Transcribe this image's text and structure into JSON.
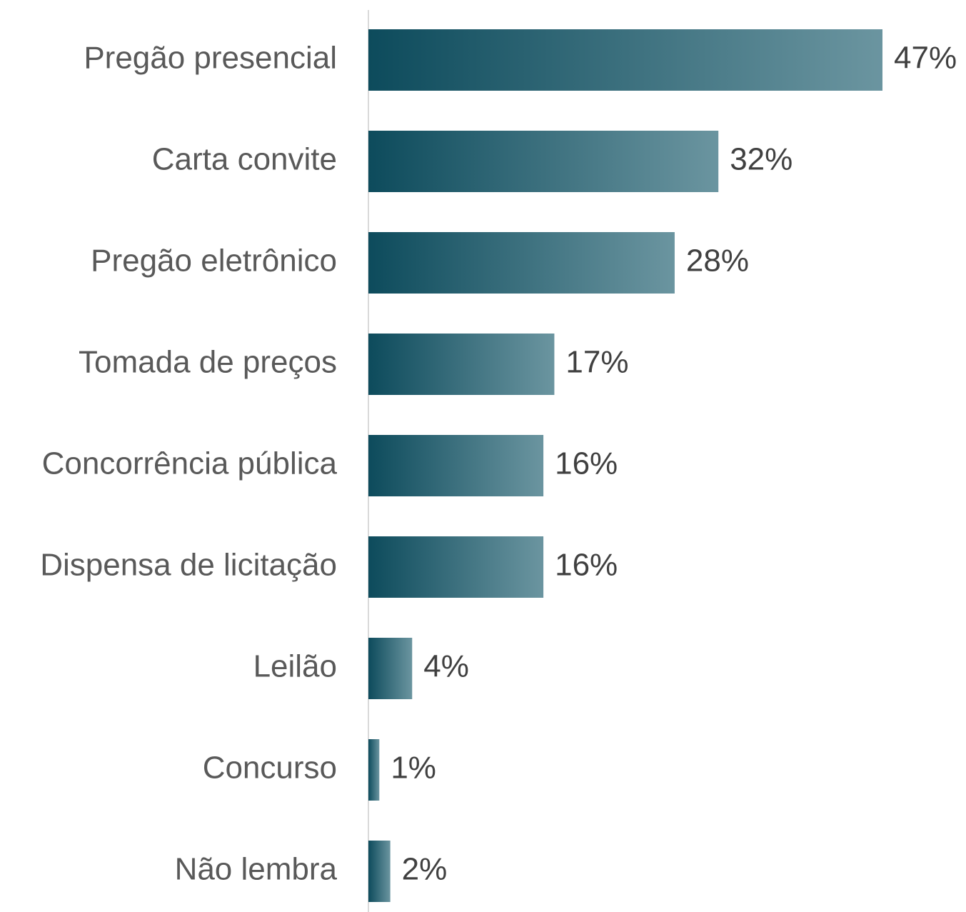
{
  "chart_data": {
    "type": "bar",
    "orientation": "horizontal",
    "categories": [
      "Pregão presencial",
      "Carta convite",
      "Pregão eletrônico",
      "Tomada de preços",
      "Concorrência pública",
      "Dispensa de licitação",
      "Leilão",
      "Concurso",
      "Não lembra"
    ],
    "values": [
      47,
      32,
      28,
      17,
      16,
      16,
      4,
      1,
      2
    ],
    "value_labels": [
      "47%",
      "32%",
      "28%",
      "17%",
      "16%",
      "16%",
      "4%",
      "1%",
      "2%"
    ],
    "gradient": [
      "#0d4b5c",
      "#6b95a0"
    ]
  }
}
